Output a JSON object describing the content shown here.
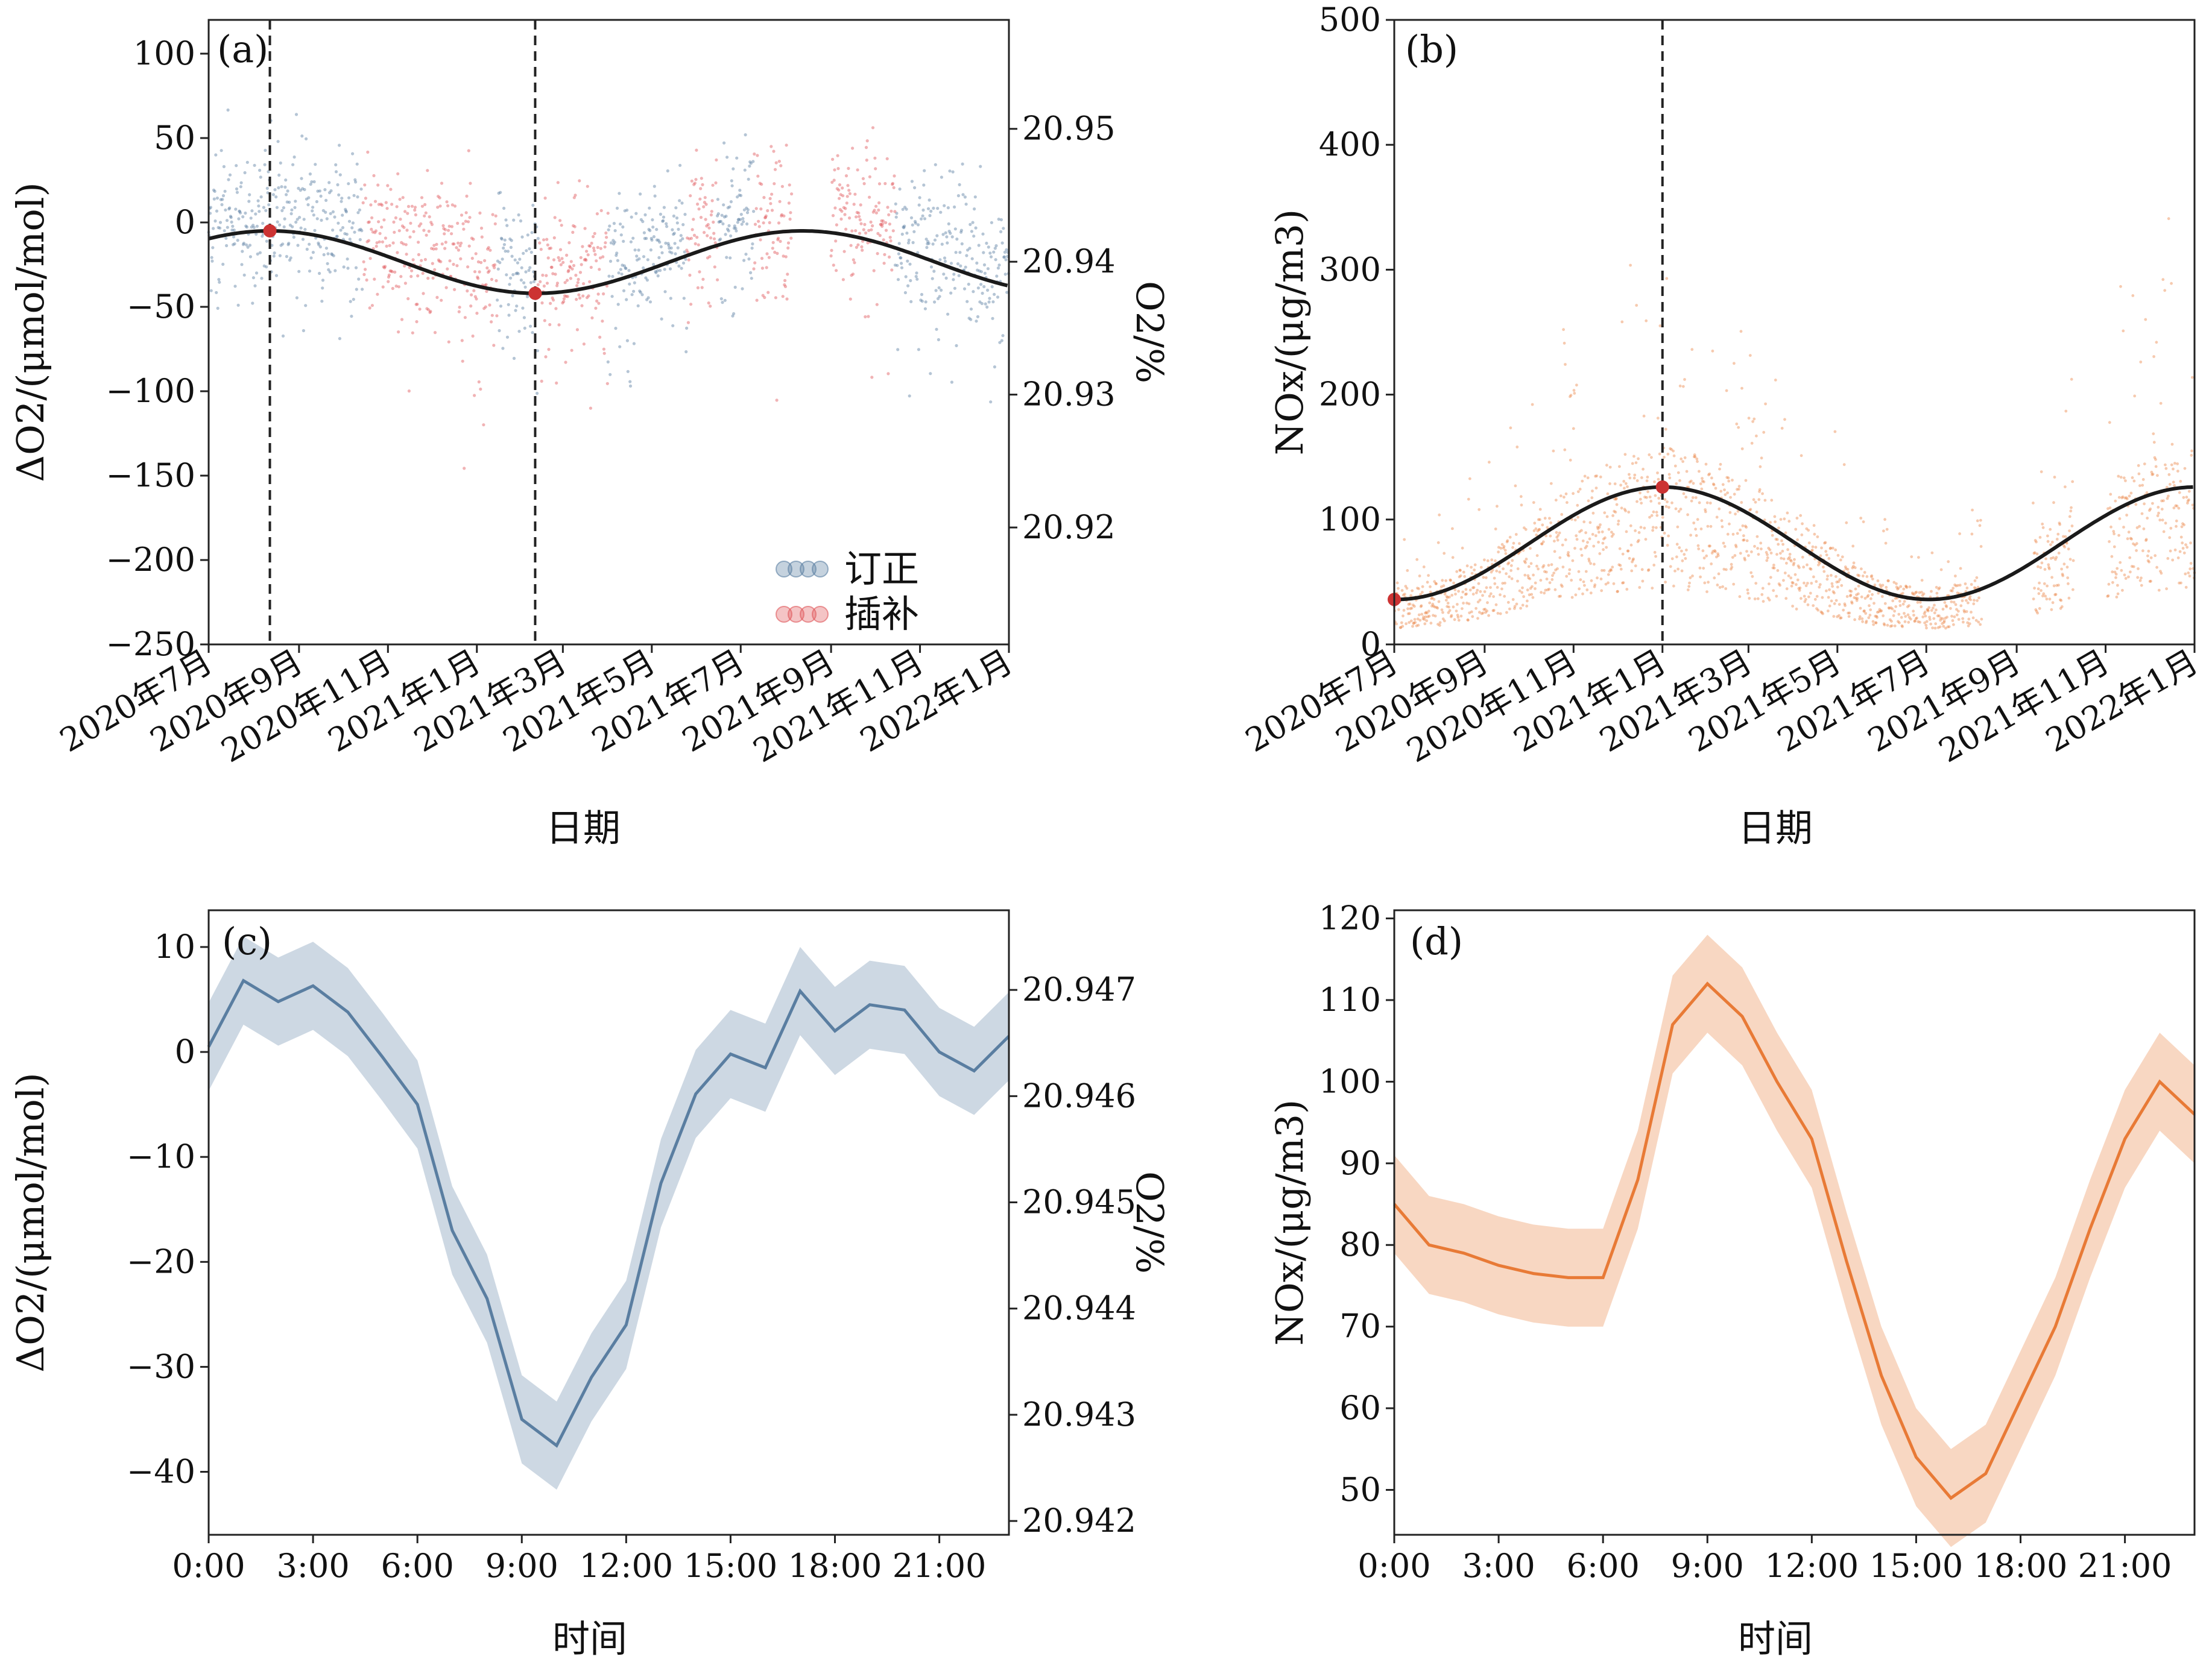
{
  "colors": {
    "corrected": "#5a7ea1",
    "interpolated": "#e0565a",
    "nox": "#e87a36",
    "fit": "#1a1a1a",
    "marker": "#cc3333"
  },
  "chart_data": [
    {
      "panel": "(a)",
      "type": "scatter",
      "xlabel": "日期",
      "ylabel": "ΔO2/(μmol/mol)",
      "ylabel_right": "O2/%",
      "x_ticks": [
        "2020年7月",
        "2020年9月",
        "2020年11月",
        "2021年1月",
        "2021年3月",
        "2021年5月",
        "2021年7月",
        "2021年9月",
        "2021年11月",
        "2022年1月"
      ],
      "xlim": [
        "2020-07-01",
        "2022-01-01"
      ],
      "ylim": [
        -250,
        120
      ],
      "y_ticks": [
        100,
        50,
        0,
        -50,
        -100,
        -150,
        -200,
        -250
      ],
      "y_ticks_labels": [
        "100",
        "50",
        "0",
        "−50",
        "−100",
        "−150",
        "−200",
        "−250"
      ],
      "y2lim": [
        20.9112,
        20.9582
      ],
      "y2_ticks": [
        20.95,
        20.94,
        20.93,
        20.92
      ],
      "y2_ticks_labels": [
        "20.95",
        "20.94",
        "20.93",
        "20.92"
      ],
      "legend": {
        "position": "lower-right",
        "entries": [
          "订正",
          "插补"
        ]
      },
      "series": [
        {
          "name": "订正",
          "role": "corrected",
          "segments": [
            [
              "2020-07-01",
              "2020-10-15"
            ],
            [
              "2021-01-15",
              "2021-02-12"
            ],
            [
              "2021-04-01",
              "2021-05-25"
            ],
            [
              "2021-06-15",
              "2021-07-10"
            ],
            [
              "2021-10-15",
              "2022-01-01"
            ]
          ]
        },
        {
          "name": "插补",
          "role": "interpolated",
          "segments": [
            [
              "2020-10-15",
              "2021-01-15"
            ],
            [
              "2021-02-12",
              "2021-04-01"
            ],
            [
              "2021-05-25",
              "2021-06-15"
            ],
            [
              "2021-07-10",
              "2021-08-05"
            ],
            [
              "2021-09-01",
              "2021-10-15"
            ]
          ]
        }
      ],
      "fit": {
        "mean": -23.5,
        "amplitude": 18.5,
        "period_days": 365.25,
        "peak_date": "2020-08-12",
        "trough_date": "2021-02-10"
      },
      "vlines": [
        "2020-08-12",
        "2021-02-10"
      ],
      "markers": [
        {
          "x": "2020-08-12",
          "y": -5
        },
        {
          "x": "2021-02-10",
          "y": -42
        }
      ]
    },
    {
      "panel": "(b)",
      "type": "scatter",
      "xlabel": "日期",
      "ylabel": "NOx/(μg/m3)",
      "x_ticks": [
        "2020年7月",
        "2020年9月",
        "2020年11月",
        "2021年1月",
        "2021年3月",
        "2021年5月",
        "2021年7月",
        "2021年9月",
        "2021年11月",
        "2022年1月"
      ],
      "xlim": [
        "2020-07-01",
        "2022-01-01"
      ],
      "ylim": [
        0,
        500
      ],
      "y_ticks": [
        0,
        100,
        200,
        300,
        400,
        500
      ],
      "fit": {
        "mean": 81,
        "amplitude": 45,
        "period_days": 365.25,
        "peak_date": "2021-01-01"
      },
      "vlines": [
        "2021-01-01"
      ],
      "markers": [
        {
          "x": "2020-07-01",
          "y": 36
        },
        {
          "x": "2021-01-01",
          "y": 126
        }
      ],
      "gaps": [
        [
          "2021-08-08",
          "2021-09-12"
        ],
        [
          "2021-10-10",
          "2021-11-02"
        ]
      ]
    },
    {
      "panel": "(c)",
      "type": "line",
      "xlabel": "时间",
      "ylabel": "ΔO2/(μmol/mol)",
      "ylabel_right": "O2/%",
      "x": [
        0,
        1,
        2,
        3,
        4,
        5,
        6,
        7,
        8,
        9,
        10,
        11,
        12,
        13,
        14,
        15,
        16,
        17,
        18,
        19,
        20,
        21,
        22,
        23
      ],
      "x_ticks": [
        0,
        3,
        6,
        9,
        12,
        15,
        18,
        21
      ],
      "x_ticks_labels": [
        "0:00",
        "3:00",
        "6:00",
        "9:00",
        "12:00",
        "15:00",
        "18:00",
        "21:00"
      ],
      "xlim": [
        0,
        23
      ],
      "values": [
        0.5,
        6.8,
        4.8,
        6.3,
        3.8,
        -0.5,
        -5.0,
        -17.0,
        -23.5,
        -35.0,
        -37.5,
        -31.0,
        -26.0,
        -12.5,
        -4.0,
        -0.2,
        -1.5,
        5.8,
        2.0,
        4.5,
        4.0,
        0.0,
        -1.8,
        1.5
      ],
      "band_halfwidth": 4.2,
      "ylim": [
        -46,
        13.5
      ],
      "y_ticks": [
        10,
        0,
        -10,
        -20,
        -30,
        -40
      ],
      "y_ticks_labels": [
        "10",
        "0",
        "−10",
        "−20",
        "−30",
        "−40"
      ],
      "y2lim": [
        20.94187,
        20.94775
      ],
      "y2_ticks": [
        20.947,
        20.946,
        20.945,
        20.944,
        20.943,
        20.942
      ],
      "y2_ticks_labels": [
        "20.947",
        "20.946",
        "20.945",
        "20.944",
        "20.943",
        "20.942"
      ]
    },
    {
      "panel": "(d)",
      "type": "line",
      "xlabel": "时间",
      "ylabel": "NOx/(μg/m3)",
      "x": [
        0,
        1,
        2,
        3,
        4,
        5,
        6,
        7,
        8,
        9,
        10,
        11,
        12,
        13,
        14,
        15,
        16,
        17,
        18,
        19,
        20,
        21,
        22,
        23
      ],
      "x_ticks": [
        0,
        3,
        6,
        9,
        12,
        15,
        18,
        21
      ],
      "x_ticks_labels": [
        "0:00",
        "3:00",
        "6:00",
        "9:00",
        "12:00",
        "15:00",
        "18:00",
        "21:00"
      ],
      "xlim": [
        0,
        23
      ],
      "values": [
        85,
        80,
        79,
        77.5,
        76.5,
        76,
        76,
        88,
        107,
        112,
        108,
        100,
        93,
        78,
        64,
        54,
        49,
        52,
        61,
        70,
        82,
        93,
        100,
        96
      ],
      "band_halfwidth": 6,
      "ylim": [
        44.5,
        121
      ],
      "y_ticks": [
        50,
        60,
        70,
        80,
        90,
        100,
        110,
        120
      ]
    }
  ]
}
